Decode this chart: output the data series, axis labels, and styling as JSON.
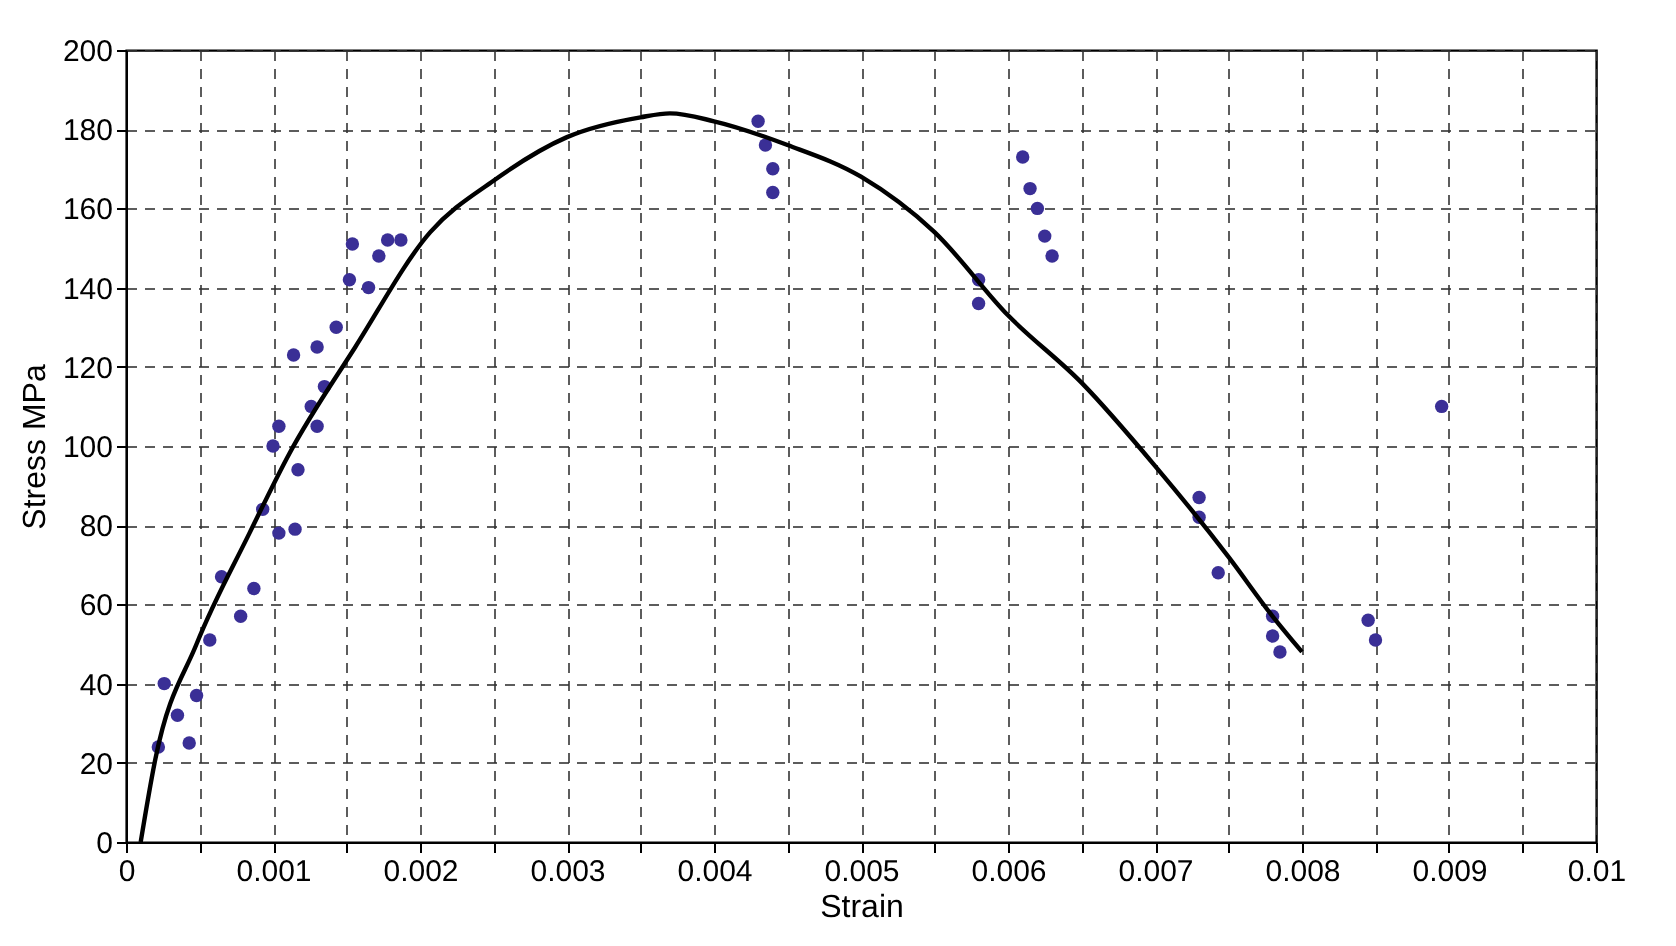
{
  "chart_data": {
    "type": "scatter",
    "xlabel": "Strain",
    "ylabel": "Stress MPa",
    "xlim": [
      0,
      0.01
    ],
    "ylim": [
      0,
      200
    ],
    "xticks": [
      0,
      {
        "value": 0.0005,
        "label": null
      },
      0.001,
      {
        "value": 0.0015,
        "label": null
      },
      0.002,
      {
        "value": 0.0025,
        "label": null
      },
      0.003,
      {
        "value": 0.0035,
        "label": null
      },
      0.004,
      {
        "value": 0.0045,
        "label": null
      },
      0.005,
      {
        "value": 0.0055,
        "label": null
      },
      0.006,
      {
        "value": 0.0065,
        "label": null
      },
      0.007,
      {
        "value": 0.0075,
        "label": null
      },
      0.008,
      {
        "value": 0.0085,
        "label": null
      },
      0.009,
      {
        "value": 0.0095,
        "label": null
      },
      0.01
    ],
    "yticks": [
      0,
      20,
      40,
      60,
      80,
      100,
      120,
      140,
      160,
      180,
      200
    ],
    "grid": true,
    "series": [
      {
        "type": "scatter",
        "marker": "circle",
        "color": "#3a2f96",
        "x": [
          0.00022,
          0.00043,
          0.00026,
          0.00035,
          0.00048,
          0.00057,
          0.00065,
          0.00078,
          0.00087,
          0.00093,
          0.001,
          0.00104,
          0.00104,
          0.00115,
          0.00117,
          0.00114,
          0.0013,
          0.0013,
          0.00126,
          0.00135,
          0.00143,
          0.00152,
          0.00154,
          0.00165,
          0.00172,
          0.00178,
          0.00187,
          0.0043,
          0.00435,
          0.0044,
          0.0044,
          0.0058,
          0.0058,
          0.0061,
          0.00615,
          0.0062,
          0.00625,
          0.0063,
          0.0073,
          0.0073,
          0.00743,
          0.0078,
          0.0078,
          0.00785,
          0.00845,
          0.0085,
          0.00895
        ],
        "values": [
          24,
          25,
          40,
          32,
          37,
          51,
          67,
          57,
          64,
          84,
          100,
          105,
          78,
          79,
          94,
          123,
          125,
          105,
          110,
          115,
          130,
          142,
          151,
          140,
          148,
          152,
          152,
          182,
          176,
          170,
          164,
          142,
          136,
          173,
          165,
          160,
          153,
          148,
          87,
          82,
          68,
          57,
          52,
          48,
          56,
          51,
          110
        ]
      },
      {
        "type": "line",
        "color": "#000000",
        "x": [
          0.0001,
          0.0002,
          0.00048,
          0.00084,
          0.00111,
          0.00156,
          0.00207,
          0.0025,
          0.003,
          0.0035,
          0.0037,
          0.004,
          0.0045,
          0.005,
          0.0055,
          0.006,
          0.0065,
          0.007,
          0.0075,
          0.0078,
          0.008
        ],
        "values": [
          0,
          21,
          50,
          78,
          98,
          125,
          154,
          167,
          178,
          183,
          184,
          182,
          176,
          168,
          154,
          133,
          116,
          95,
          72,
          57,
          48
        ]
      }
    ]
  }
}
